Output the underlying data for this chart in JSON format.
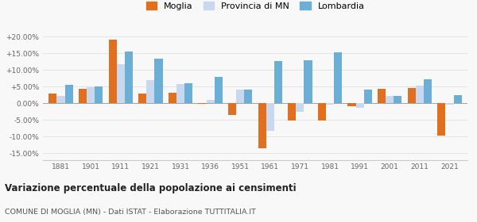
{
  "years": [
    1881,
    1901,
    1911,
    1921,
    1931,
    1936,
    1951,
    1961,
    1971,
    1981,
    1991,
    2001,
    2011,
    2021
  ],
  "moglia": [
    2.8,
    4.4,
    19.0,
    3.0,
    3.2,
    -0.3,
    -3.5,
    -13.5,
    -5.2,
    -5.3,
    -0.8,
    4.3,
    4.6,
    -9.8
  ],
  "provincia_mn": [
    2.3,
    4.8,
    11.8,
    7.0,
    5.8,
    1.0,
    4.0,
    -8.3,
    -2.5,
    -0.5,
    -1.3,
    2.2,
    5.2,
    -0.5
  ],
  "lombardia": [
    5.6,
    5.0,
    15.5,
    13.3,
    6.0,
    7.8,
    4.2,
    12.7,
    12.8,
    15.3,
    4.0,
    2.1,
    7.2,
    2.5
  ],
  "color_moglia": "#E07020",
  "color_provincia": "#C8D8EE",
  "color_lombardia": "#6BAED6",
  "title": "Variazione percentuale della popolazione ai censimenti",
  "subtitle": "COMUNE DI MOGLIA (MN) - Dati ISTAT - Elaborazione TUTTITALIA.IT",
  "yticks": [
    -15,
    -10,
    -5,
    0,
    5,
    10,
    15,
    20
  ],
  "ytick_labels": [
    "-15.00%",
    "-10.00%",
    "-5.00%",
    "0.00%",
    "+5.00%",
    "+10.00%",
    "+15.00%",
    "+20.00%"
  ],
  "ylim": [
    -17,
    23
  ],
  "bar_width": 0.27,
  "background_color": "#f8f8f8",
  "grid_color": "#e0e0e0"
}
